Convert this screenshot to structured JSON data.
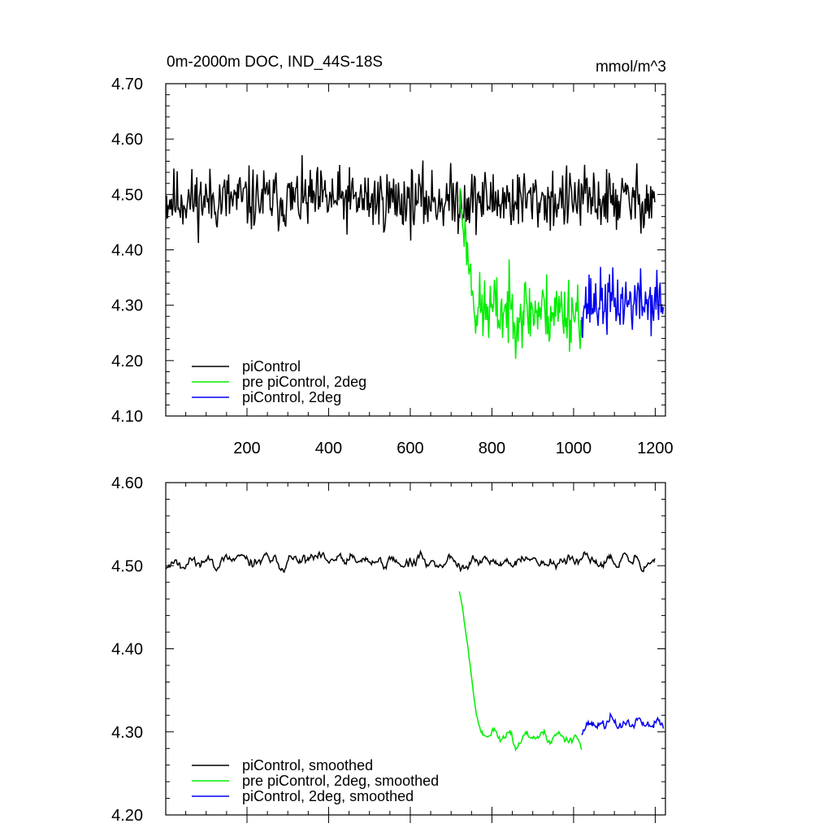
{
  "chart_data": [
    {
      "type": "line",
      "title": "0m-2000m DOC, IND_44S-18S",
      "units": "mmol/m^3",
      "xlim": [
        1,
        1225
      ],
      "ylim": [
        4.1,
        4.7
      ],
      "x_ticks": [
        200,
        400,
        600,
        800,
        1000,
        1200
      ],
      "x_tick_labels": [
        "200",
        "400",
        "600",
        "800",
        "1000",
        "1200"
      ],
      "y_ticks": [
        4.1,
        4.2,
        4.3,
        4.4,
        4.5,
        4.6,
        4.7
      ],
      "y_tick_labels": [
        "4.10",
        "4.20",
        "4.30",
        "4.40",
        "4.50",
        "4.60",
        "4.70"
      ],
      "grid": false,
      "legend_position": "bottom-left",
      "series": [
        {
          "name": "piControl",
          "color": "#000000",
          "x_range": [
            1,
            1200
          ],
          "mean": 4.49,
          "amplitude": 0.085,
          "smooth": false,
          "seed": 11
        },
        {
          "name": "pre piControl, 2deg",
          "color": "#00ee00",
          "x_range": [
            720,
            1020
          ],
          "mean": 4.29,
          "amplitude": 0.1,
          "start_value": 4.5,
          "transition_end": 760,
          "smooth": false,
          "seed": 23
        },
        {
          "name": "piControl, 2deg",
          "color": "#0000ee",
          "x_range": [
            1020,
            1220
          ],
          "mean": 4.305,
          "amplitude": 0.085,
          "smooth": false,
          "seed": 37
        }
      ]
    },
    {
      "type": "line",
      "title": "",
      "units": "",
      "xlim": [
        1,
        1225
      ],
      "ylim": [
        4.2,
        4.6
      ],
      "x_ticks": [
        200,
        400,
        600,
        800,
        1000,
        1200
      ],
      "x_tick_labels": [],
      "y_ticks": [
        4.2,
        4.3,
        4.4,
        4.5,
        4.6
      ],
      "y_tick_labels": [
        "4.20",
        "4.30",
        "4.40",
        "4.50",
        "4.60"
      ],
      "grid": false,
      "legend_position": "bottom-left",
      "series": [
        {
          "name": "piControl, smoothed",
          "color": "#000000",
          "x_range": [
            1,
            1200
          ],
          "mean": 4.505,
          "amplitude": 0.038,
          "smooth": true,
          "seed": 11
        },
        {
          "name": "pre piControl, 2deg, smoothed",
          "color": "#00ee00",
          "x_range": [
            720,
            1020
          ],
          "mean": 4.295,
          "amplitude": 0.038,
          "start_value": 4.48,
          "transition_end": 770,
          "smooth": true,
          "seed": 23
        },
        {
          "name": "piControl, 2deg, smoothed",
          "color": "#0000ee",
          "x_range": [
            1020,
            1220
          ],
          "mean": 4.31,
          "amplitude": 0.04,
          "smooth": true,
          "seed": 37
        }
      ]
    }
  ]
}
